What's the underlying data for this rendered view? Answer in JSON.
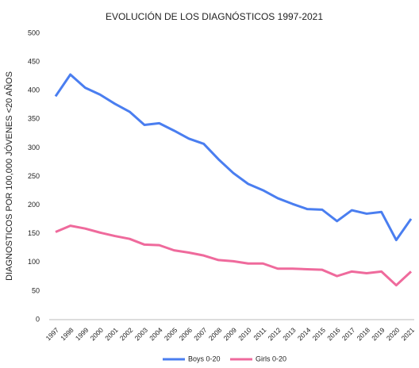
{
  "chart_data": {
    "type": "line",
    "title": "EVOLUCIÓN DE LOS DIAGNÓSTICOS 1997-2021",
    "y_label": "DIAGNOSTICOS POR 100,000 JÓVENES <20 AÑOS",
    "categories": [
      "1997",
      "1998",
      "1999",
      "2000",
      "2001",
      "2002",
      "2003",
      "2004",
      "2005",
      "2006",
      "2007",
      "2008",
      "2009",
      "2010",
      "2011",
      "2012",
      "2013",
      "2014",
      "2015",
      "2016",
      "2017",
      "2018",
      "2019",
      "2020",
      "2021"
    ],
    "series": [
      {
        "name": "Boys 0-20",
        "color": "#4a7ef0",
        "values": [
          390,
          428,
          405,
          393,
          377,
          363,
          340,
          343,
          330,
          316,
          307,
          280,
          256,
          237,
          226,
          212,
          202,
          193,
          192,
          172,
          191,
          185,
          188,
          139,
          176
        ]
      },
      {
        "name": "Girls 0-20",
        "color": "#ef6a9c",
        "values": [
          153,
          164,
          159,
          152,
          146,
          141,
          131,
          130,
          121,
          117,
          112,
          104,
          102,
          98,
          98,
          89,
          89,
          88,
          87,
          76,
          84,
          81,
          84,
          60,
          84
        ]
      }
    ],
    "ylim": [
      0,
      500
    ],
    "yticks": [
      0,
      50,
      100,
      150,
      200,
      250,
      300,
      350,
      400,
      450,
      500
    ],
    "grid": false,
    "legend": "bottom"
  }
}
